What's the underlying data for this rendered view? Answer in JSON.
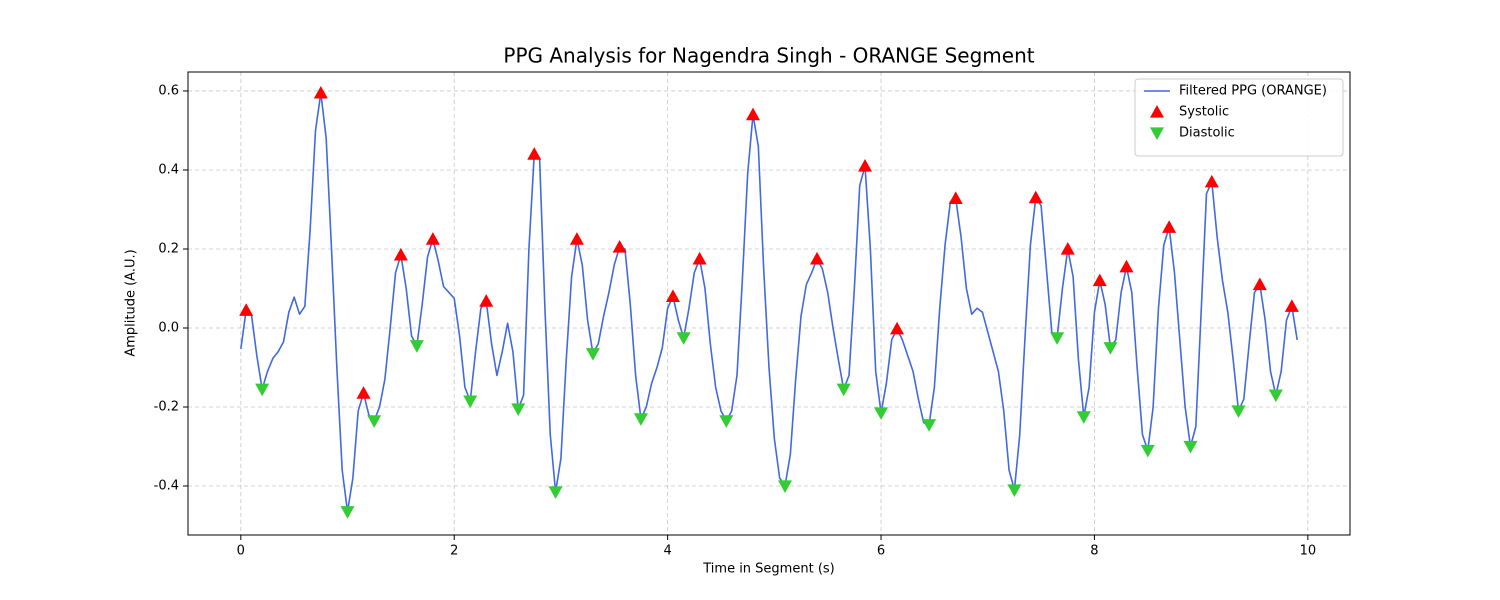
{
  "chart_data": {
    "type": "line",
    "title": "PPG Analysis for Nagendra Singh - ORANGE Segment",
    "x_label": "Time in Segment (s)",
    "y_label": "Amplitude (A.U.)",
    "xlim": [
      -0.495,
      10.395
    ],
    "ylim": [
      -0.524,
      0.648
    ],
    "xticks": [
      0,
      2,
      4,
      6,
      8,
      10
    ],
    "yticks": [
      -0.4,
      -0.2,
      {
        "value": 0,
        "label": "0.0"
      },
      0.2,
      0.4,
      0.6
    ],
    "grid": true,
    "legend": "upper right",
    "series": [
      {
        "name": "Filtered PPG (ORANGE)",
        "type": "line",
        "color": "#4169e1",
        "x": [
          0,
          0.05,
          0.1,
          0.15,
          0.2,
          0.25,
          0.3,
          0.35,
          0.4,
          0.45,
          0.5,
          0.55,
          0.6,
          0.65,
          0.7,
          0.75,
          0.8,
          0.85,
          0.9,
          0.95,
          1,
          1.05,
          1.1,
          1.15,
          1.2,
          1.25,
          1.3,
          1.35,
          1.4,
          1.45,
          1.5,
          1.55,
          1.6,
          1.65,
          1.7,
          1.75,
          1.8,
          1.85,
          1.9,
          1.95,
          2,
          2.05,
          2.1,
          2.15,
          2.2,
          2.25,
          2.3,
          2.35,
          2.4,
          2.45,
          2.5,
          2.55,
          2.6,
          2.65,
          2.7,
          2.75,
          2.8,
          2.85,
          2.9,
          2.95,
          3,
          3.05,
          3.1,
          3.15,
          3.2,
          3.25,
          3.3,
          3.35,
          3.4,
          3.45,
          3.5,
          3.55,
          3.6,
          3.65,
          3.7,
          3.75,
          3.8,
          3.85,
          3.9,
          3.95,
          4,
          4.05,
          4.1,
          4.15,
          4.2,
          4.25,
          4.3,
          4.35,
          4.4,
          4.45,
          4.5,
          4.55,
          4.6,
          4.65,
          4.7,
          4.75,
          4.8,
          4.85,
          4.9,
          4.95,
          5,
          5.05,
          5.1,
          5.15,
          5.2,
          5.25,
          5.3,
          5.35,
          5.4,
          5.45,
          5.5,
          5.55,
          5.6,
          5.65,
          5.7,
          5.75,
          5.8,
          5.85,
          5.9,
          5.95,
          6,
          6.05,
          6.1,
          6.15,
          6.2,
          6.25,
          6.3,
          6.35,
          6.4,
          6.45,
          6.5,
          6.55,
          6.6,
          6.65,
          6.7,
          6.75,
          6.8,
          6.85,
          6.9,
          6.95,
          7,
          7.05,
          7.1,
          7.15,
          7.2,
          7.25,
          7.3,
          7.35,
          7.4,
          7.45,
          7.5,
          7.55,
          7.6,
          7.65,
          7.7,
          7.75,
          7.8,
          7.85,
          7.9,
          7.95,
          8,
          8.05,
          8.1,
          8.15,
          8.2,
          8.25,
          8.3,
          8.35,
          8.4,
          8.45,
          8.5,
          8.55,
          8.6,
          8.65,
          8.7,
          8.75,
          8.8,
          8.85,
          8.9,
          8.95,
          9,
          9.05,
          9.1,
          9.15,
          9.2,
          9.25,
          9.3,
          9.35,
          9.4,
          9.45,
          9.5,
          9.55,
          9.6,
          9.65,
          9.7,
          9.75,
          9.8,
          9.85,
          9.9
        ],
        "values": [
          -0.053,
          0.045,
          0.033,
          -0.07,
          -0.155,
          -0.11,
          -0.077,
          -0.06,
          -0.035,
          0.04,
          0.078,
          0.035,
          0.055,
          0.25,
          0.5,
          0.595,
          0.48,
          0.2,
          -0.1,
          -0.36,
          -0.465,
          -0.38,
          -0.21,
          -0.165,
          -0.22,
          -0.235,
          -0.2,
          -0.13,
          0.0,
          0.14,
          0.185,
          0.1,
          -0.02,
          -0.045,
          0.06,
          0.18,
          0.225,
          0.17,
          0.105,
          0.09,
          0.075,
          -0.02,
          -0.15,
          -0.185,
          -0.06,
          0.05,
          0.068,
          -0.04,
          -0.12,
          -0.06,
          0.012,
          -0.06,
          -0.205,
          -0.17,
          0.2,
          0.44,
          0.43,
          0.05,
          -0.27,
          -0.415,
          -0.33,
          -0.08,
          0.13,
          0.225,
          0.16,
          0.02,
          -0.065,
          -0.04,
          0.03,
          0.09,
          0.16,
          0.205,
          0.2,
          0.06,
          -0.12,
          -0.23,
          -0.2,
          -0.14,
          -0.1,
          -0.05,
          0.05,
          0.08,
          0.02,
          -0.025,
          0.05,
          0.14,
          0.175,
          0.1,
          -0.04,
          -0.15,
          -0.21,
          -0.235,
          -0.21,
          -0.12,
          0.12,
          0.39,
          0.54,
          0.46,
          0.15,
          -0.1,
          -0.28,
          -0.38,
          -0.4,
          -0.32,
          -0.13,
          0.03,
          0.11,
          0.14,
          0.175,
          0.15,
          0.09,
          0.0,
          -0.08,
          -0.155,
          -0.12,
          0.1,
          0.36,
          0.41,
          0.2,
          -0.11,
          -0.215,
          -0.14,
          -0.03,
          -0.002,
          -0.03,
          -0.07,
          -0.11,
          -0.18,
          -0.24,
          -0.245,
          -0.15,
          0.05,
          0.21,
          0.32,
          0.328,
          0.23,
          0.1,
          0.035,
          0.05,
          0.04,
          -0.01,
          -0.06,
          -0.11,
          -0.21,
          -0.36,
          -0.41,
          -0.27,
          -0.02,
          0.21,
          0.33,
          0.31,
          0.15,
          -0.01,
          -0.025,
          0.1,
          0.2,
          0.13,
          -0.08,
          -0.225,
          -0.15,
          0.04,
          0.12,
          0.06,
          -0.05,
          -0.03,
          0.09,
          0.155,
          0.09,
          -0.1,
          -0.27,
          -0.31,
          -0.2,
          0.05,
          0.21,
          0.255,
          0.14,
          -0.03,
          -0.2,
          -0.3,
          -0.25,
          0.04,
          0.34,
          0.37,
          0.23,
          0.12,
          0.04,
          -0.08,
          -0.21,
          -0.18,
          -0.04,
          0.09,
          0.11,
          0.02,
          -0.11,
          -0.17,
          -0.11,
          0.02,
          0.055,
          -0.03
        ]
      },
      {
        "name": "Systolic",
        "type": "scatter",
        "marker": "triangle-up",
        "color": "#ff0000",
        "x": [
          0.05,
          0.75,
          1.15,
          1.5,
          1.8,
          2.3,
          2.75,
          3.15,
          3.55,
          4.05,
          4.3,
          4.8,
          5.4,
          5.85,
          6.15,
          6.7,
          7.45,
          7.75,
          8.05,
          8.3,
          8.7,
          9.1,
          9.55,
          9.85
        ],
        "values": [
          0.045,
          0.595,
          -0.165,
          0.185,
          0.225,
          0.068,
          0.44,
          0.225,
          0.205,
          0.08,
          0.175,
          0.54,
          0.175,
          0.41,
          -0.002,
          0.328,
          0.33,
          0.2,
          0.12,
          0.155,
          0.255,
          0.37,
          0.11,
          0.055
        ]
      },
      {
        "name": "Diastolic",
        "type": "scatter",
        "marker": "triangle-down",
        "color": "#32cd32",
        "x": [
          0.2,
          1.0,
          1.25,
          1.65,
          2.15,
          2.6,
          2.95,
          3.3,
          3.75,
          4.15,
          4.55,
          5.1,
          5.65,
          6.0,
          6.45,
          7.25,
          7.65,
          7.9,
          8.15,
          8.5,
          8.9,
          9.35,
          9.7
        ],
        "values": [
          -0.155,
          -0.465,
          -0.235,
          -0.045,
          -0.185,
          -0.205,
          -0.415,
          -0.065,
          -0.23,
          -0.025,
          -0.235,
          -0.4,
          -0.155,
          -0.215,
          -0.245,
          -0.41,
          -0.025,
          -0.225,
          -0.05,
          -0.31,
          -0.3,
          -0.21,
          -0.17
        ]
      }
    ]
  }
}
